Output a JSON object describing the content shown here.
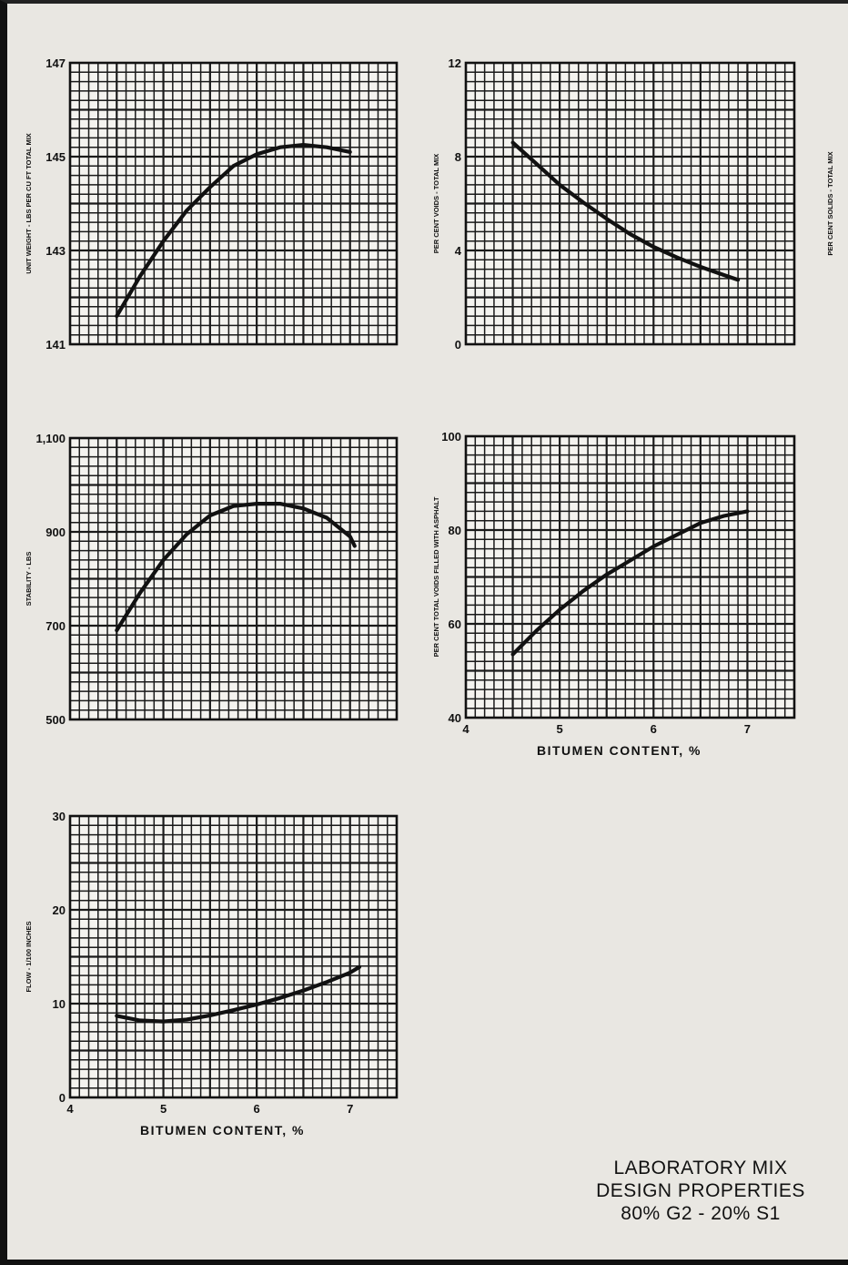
{
  "caption": {
    "line1": "LABORATORY MIX",
    "line2": "DESIGN PROPERTIES",
    "line3": "80% G2 - 20% S1"
  },
  "colors": {
    "background": "#e9e7e2",
    "ink": "#111111",
    "grid": "#1a1a1a",
    "cell": "#f4f3ef"
  },
  "chart_data": [
    {
      "type": "line",
      "ylabel": "UNIT WEIGHT - LBS PER CU FT TOTAL MIX",
      "xlabel": "",
      "xlim": [
        4,
        7.5
      ],
      "ylim": [
        141,
        147
      ],
      "yticks": [
        141,
        143,
        145,
        147
      ],
      "ytick_labels": [
        "141",
        "143",
        "145",
        "147"
      ],
      "xticks": [],
      "xtick_labels": [],
      "grid": true,
      "series": [
        {
          "x": [
            4.5,
            4.75,
            5.0,
            5.25,
            5.5,
            5.75,
            6.0,
            6.25,
            6.5,
            6.75,
            7.0
          ],
          "y": [
            141.6,
            142.45,
            143.2,
            143.85,
            144.35,
            144.8,
            145.05,
            145.2,
            145.25,
            145.2,
            145.1
          ]
        }
      ]
    },
    {
      "type": "line",
      "ylabel": "PER CENT VOIDS - TOTAL MIX",
      "xlabel": "",
      "xlim": [
        4,
        7.5
      ],
      "ylim": [
        0,
        12
      ],
      "yticks": [
        0,
        4,
        8,
        12
      ],
      "ytick_labels": [
        "0",
        "4",
        "8",
        "12"
      ],
      "xticks": [],
      "xtick_labels": [],
      "grid": true,
      "series": [
        {
          "x": [
            4.5,
            4.75,
            5.0,
            5.25,
            5.5,
            5.75,
            6.0,
            6.25,
            6.5,
            6.75,
            6.9
          ],
          "y": [
            8.6,
            7.7,
            6.8,
            6.05,
            5.35,
            4.7,
            4.15,
            3.7,
            3.3,
            2.95,
            2.75
          ]
        }
      ]
    },
    {
      "type": "line",
      "ylabel": "PER CENT SOLIDS - TOTAL MIX",
      "xlabel": "",
      "xlim": [
        4,
        7.5
      ],
      "ylim": [],
      "yticks": [],
      "ytick_labels": [],
      "xticks": [],
      "xtick_labels": [],
      "grid": true,
      "series": []
    },
    {
      "type": "line",
      "ylabel": "STABILITY - LBS",
      "xlabel": "",
      "xlim": [
        4,
        7.5
      ],
      "ylim": [
        500,
        1100
      ],
      "yticks": [
        500,
        700,
        900,
        1100
      ],
      "ytick_labels": [
        "500",
        "700",
        "900",
        "1,100"
      ],
      "xticks": [],
      "xtick_labels": [],
      "grid": true,
      "series": [
        {
          "x": [
            4.5,
            4.75,
            5.0,
            5.25,
            5.5,
            5.75,
            6.0,
            6.25,
            6.5,
            6.75,
            7.0,
            7.05
          ],
          "y": [
            690,
            770,
            840,
            895,
            935,
            955,
            960,
            960,
            950,
            930,
            890,
            870
          ]
        }
      ]
    },
    {
      "type": "line",
      "ylabel": "PER CENT TOTAL VOIDS FILLED WITH ASPHALT",
      "xlabel": "BITUMEN CONTENT, %",
      "xlim": [
        4,
        7.5
      ],
      "ylim": [
        40,
        100
      ],
      "yticks": [
        40,
        60,
        80,
        100
      ],
      "ytick_labels": [
        "40",
        "60",
        "80",
        "100"
      ],
      "xticks": [
        4,
        5,
        6,
        7
      ],
      "xtick_labels": [
        "4",
        "5",
        "6",
        "7"
      ],
      "grid": true,
      "series": [
        {
          "x": [
            4.5,
            4.75,
            5.0,
            5.25,
            5.5,
            5.75,
            6.0,
            6.25,
            6.5,
            6.75,
            7.0
          ],
          "y": [
            53.5,
            58.5,
            63,
            67,
            70.5,
            73.5,
            76.5,
            79,
            81.5,
            83,
            84
          ]
        }
      ]
    },
    {
      "type": "line",
      "ylabel": "FLOW - 1/100 INCHES",
      "xlabel": "BITUMEN CONTENT, %",
      "xlim": [
        4,
        7.5
      ],
      "ylim": [
        0,
        30
      ],
      "yticks": [
        0,
        10,
        20,
        30
      ],
      "ytick_labels": [
        "0",
        "10",
        "20",
        "30"
      ],
      "xticks": [
        4,
        5,
        6,
        7
      ],
      "xtick_labels": [
        "4",
        "5",
        "6",
        "7"
      ],
      "grid": true,
      "series": [
        {
          "x": [
            4.5,
            4.75,
            5.0,
            5.25,
            5.5,
            5.75,
            6.0,
            6.25,
            6.5,
            6.75,
            7.0,
            7.1
          ],
          "y": [
            8.7,
            8.2,
            8.1,
            8.3,
            8.75,
            9.3,
            9.9,
            10.6,
            11.4,
            12.3,
            13.3,
            13.9
          ]
        }
      ]
    }
  ]
}
